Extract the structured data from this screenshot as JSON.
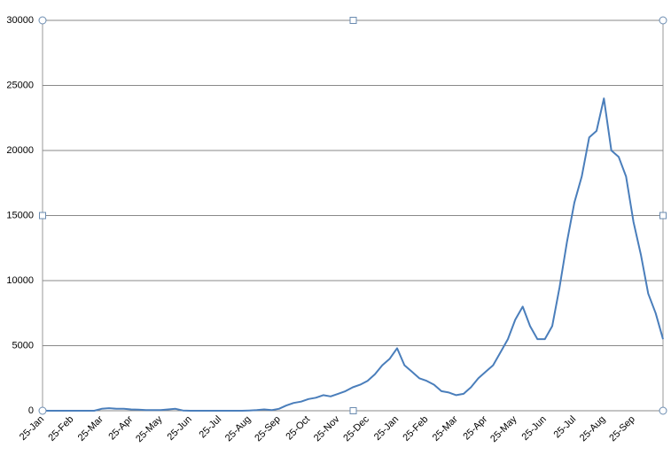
{
  "chart_data": {
    "type": "line",
    "categories": [
      "25-Jan",
      null,
      null,
      null,
      "25-Feb",
      null,
      null,
      null,
      "25-Mar",
      null,
      null,
      null,
      "25-Apr",
      null,
      null,
      null,
      "25-May",
      null,
      null,
      null,
      "25-Jun",
      null,
      null,
      null,
      "25-Jul",
      null,
      null,
      null,
      "25-Aug",
      null,
      null,
      null,
      "25-Sep",
      null,
      null,
      null,
      "25-Oct",
      null,
      null,
      null,
      "25-Nov",
      null,
      null,
      null,
      "25-Dec",
      null,
      null,
      null,
      "25-Jan",
      null,
      null,
      null,
      "25-Feb",
      null,
      null,
      null,
      "25-Mar",
      null,
      null,
      null,
      "25-Apr",
      null,
      null,
      null,
      "25-May",
      null,
      null,
      null,
      "25-Jun",
      null,
      null,
      null,
      "25-Jul",
      null,
      null,
      null,
      "25-Aug",
      null,
      null,
      null,
      "25-Sep",
      null,
      null,
      null,
      null
    ],
    "values": [
      0,
      0,
      0,
      0,
      0,
      0,
      0,
      0,
      150,
      200,
      150,
      150,
      100,
      80,
      50,
      50,
      50,
      100,
      150,
      20,
      0,
      0,
      0,
      0,
      0,
      0,
      0,
      0,
      20,
      50,
      100,
      50,
      150,
      400,
      600,
      700,
      900,
      1000,
      1200,
      1100,
      1300,
      1500,
      1800,
      2000,
      2300,
      2800,
      3500,
      4000,
      4800,
      3500,
      3000,
      2500,
      2300,
      2000,
      1500,
      1400,
      1200,
      1300,
      1800,
      2500,
      3000,
      3500,
      4500,
      5500,
      7000,
      8000,
      6500,
      5500,
      5500,
      6500,
      9500,
      13000,
      16000,
      18000,
      21000,
      21500,
      24000,
      20000,
      19500,
      18000,
      14500,
      12000,
      9000,
      7500,
      5500
    ],
    "color": "#4a7ebb",
    "ylim": [
      0,
      30000
    ],
    "yticks": [
      0,
      5000,
      10000,
      15000,
      20000,
      25000,
      30000
    ],
    "grid": true
  }
}
